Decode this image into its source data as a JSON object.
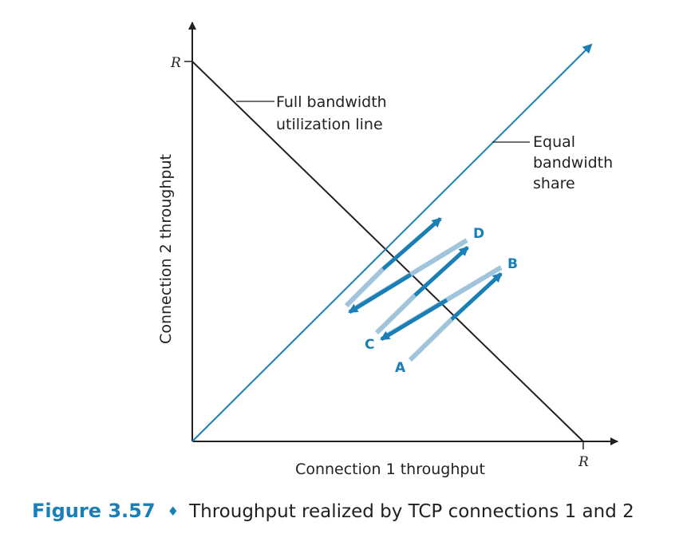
{
  "axes": {
    "x_label": "Connection 1 throughput",
    "y_label": "Connection 2 throughput",
    "x_max_label": "R",
    "y_max_label": "R"
  },
  "lines": {
    "full_bandwidth_label": [
      "Full bandwidth",
      "utilization line"
    ],
    "equal_share_label": [
      "Equal",
      "bandwidth",
      "share"
    ]
  },
  "points": {
    "A": "A",
    "B": "B",
    "C": "C",
    "D": "D"
  },
  "caption": {
    "number": "Figure 3.57",
    "separator": "♦",
    "text": "Throughput realized by TCP connections 1 and 2"
  },
  "colors": {
    "axis": "#231f20",
    "equal_line": "#1a7fb5",
    "arrow_dark": "#1a7fb5",
    "arrow_light": "#9fc4dc"
  }
}
